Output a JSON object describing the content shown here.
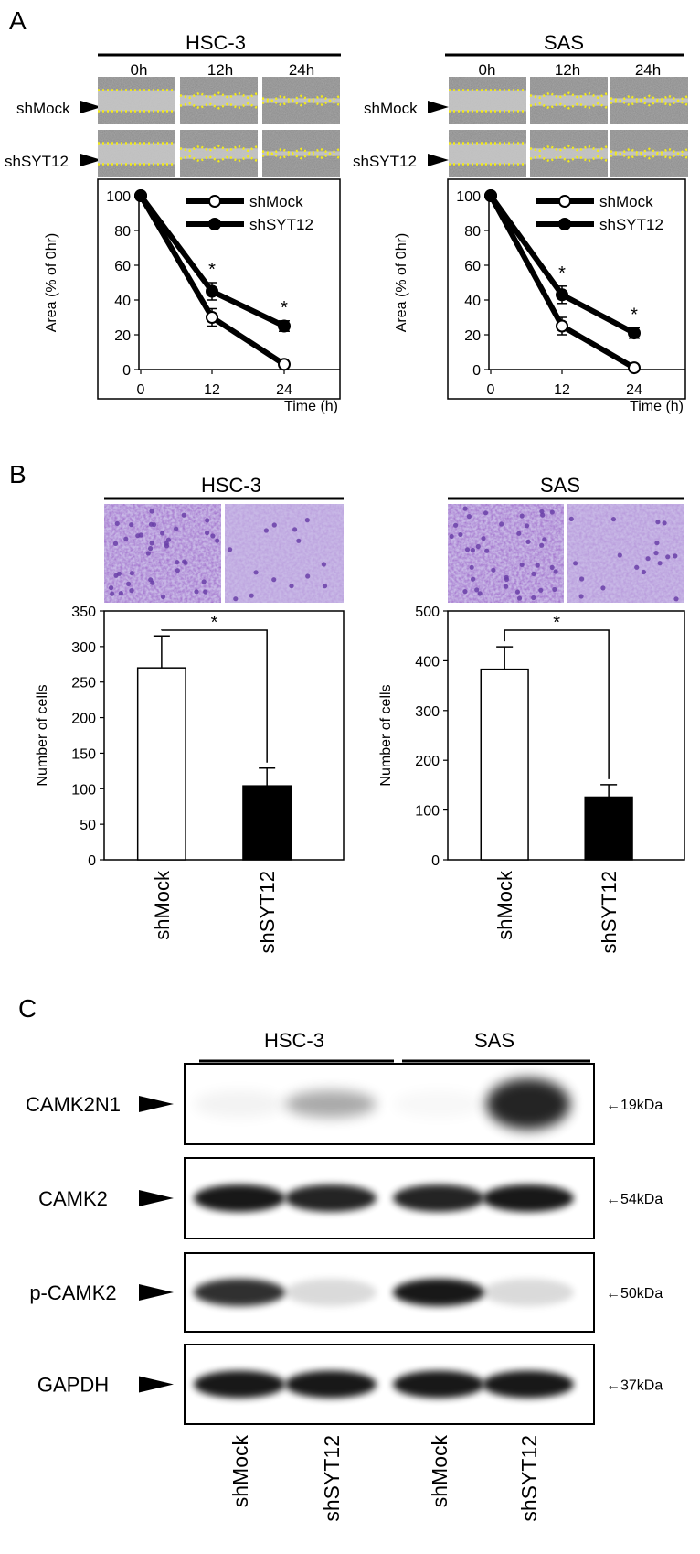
{
  "panel_letters": {
    "A": "A",
    "B": "B",
    "C": "C"
  },
  "cell_lines": {
    "hsc3": "HSC-3",
    "sas": "SAS"
  },
  "timepoints": [
    "0h",
    "12h",
    "24h"
  ],
  "row_labels": [
    "shMock",
    "shSYT12"
  ],
  "colors": {
    "axis": "#000000",
    "scratch_line": "#f2ea1a",
    "crystal_violet": "#6a3fa8",
    "panel_bg": "#ffffff"
  },
  "chart_data": [
    {
      "id": "A-HSC-3",
      "type": "line",
      "panel": "A",
      "title": "HSC-3",
      "x": [
        0,
        12,
        24
      ],
      "xlabel": "Time (h)",
      "ylabel": "Area (% of 0hr)",
      "ylim": [
        0,
        100
      ],
      "yticks": [
        0,
        20,
        40,
        60,
        80,
        100
      ],
      "xticks": [
        "0",
        "12",
        "24"
      ],
      "legend_position": "top-right",
      "series": [
        {
          "name": "shMock",
          "marker": "open-circle",
          "values": [
            100,
            30,
            3
          ],
          "errors": [
            0,
            5,
            1
          ]
        },
        {
          "name": "shSYT12",
          "marker": "filled-circle",
          "values": [
            100,
            45,
            25
          ],
          "errors": [
            0,
            5,
            3
          ]
        }
      ],
      "annotations": [
        {
          "x": 12,
          "text": "*"
        },
        {
          "x": 24,
          "text": "*"
        }
      ]
    },
    {
      "id": "A-SAS",
      "type": "line",
      "panel": "A",
      "title": "SAS",
      "x": [
        0,
        12,
        24
      ],
      "xlabel": "Time (h)",
      "ylabel": "Area (% of 0hr)",
      "ylim": [
        0,
        100
      ],
      "yticks": [
        0,
        20,
        40,
        60,
        80,
        100
      ],
      "xticks": [
        "0",
        "12",
        "24"
      ],
      "legend_position": "top-right",
      "series": [
        {
          "name": "shMock",
          "marker": "open-circle",
          "values": [
            100,
            25,
            1
          ],
          "errors": [
            0,
            5,
            0
          ]
        },
        {
          "name": "shSYT12",
          "marker": "filled-circle",
          "values": [
            100,
            43,
            21
          ],
          "errors": [
            0,
            5,
            3
          ]
        }
      ],
      "annotations": [
        {
          "x": 12,
          "text": "*"
        },
        {
          "x": 24,
          "text": "*"
        }
      ]
    },
    {
      "id": "B-HSC-3",
      "type": "bar",
      "panel": "B",
      "title": "HSC-3",
      "categories": [
        "shMock",
        "shSYT12"
      ],
      "values": [
        270,
        104
      ],
      "errors": [
        45,
        25
      ],
      "fills": [
        "#ffffff",
        "#000000"
      ],
      "ylabel": "Number of cells",
      "ylim": [
        0,
        350
      ],
      "yticks": [
        0,
        50,
        100,
        150,
        200,
        250,
        300,
        350
      ],
      "significance": "*"
    },
    {
      "id": "B-SAS",
      "type": "bar",
      "panel": "B",
      "title": "SAS",
      "categories": [
        "shMock",
        "shSYT12"
      ],
      "values": [
        383,
        126
      ],
      "errors": [
        45,
        25
      ],
      "fills": [
        "#ffffff",
        "#000000"
      ],
      "ylabel": "Number of cells",
      "ylim": [
        0,
        500
      ],
      "yticks": [
        0,
        100,
        200,
        300,
        400,
        500
      ],
      "significance": "*"
    }
  ],
  "western_blot": {
    "groups": [
      "HSC-3",
      "SAS"
    ],
    "lanes": [
      "shMock",
      "shSYT12",
      "shMock",
      "shSYT12"
    ],
    "rows": [
      {
        "protein": "CAMK2N1",
        "size": "←19kDa",
        "intensity": [
          0.05,
          0.35,
          0.03,
          0.9
        ]
      },
      {
        "protein": "CAMK2",
        "size": "←54kDa",
        "intensity": [
          0.95,
          0.9,
          0.9,
          0.95
        ]
      },
      {
        "protein": "p-CAMK2",
        "size": "←50kDa",
        "intensity": [
          0.85,
          0.15,
          0.95,
          0.15
        ]
      },
      {
        "protein": "GAPDH",
        "size": "←37kDa",
        "intensity": [
          0.95,
          0.95,
          0.95,
          0.95
        ]
      }
    ]
  }
}
